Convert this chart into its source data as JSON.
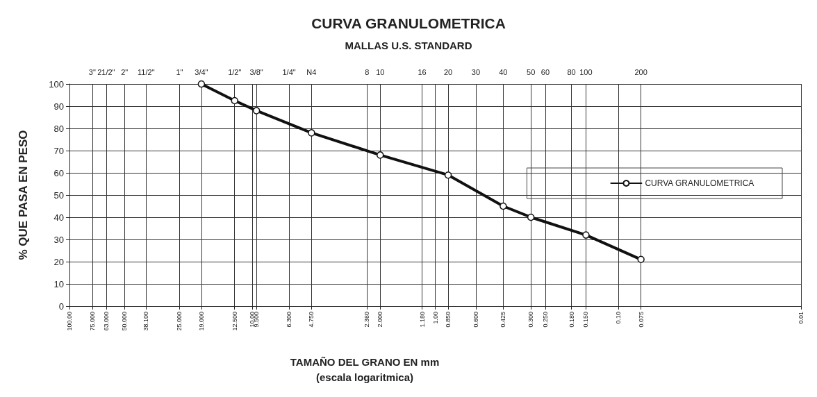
{
  "chart_data": {
    "type": "line",
    "title": "CURVA GRANULOMETRICA",
    "subtitle": "MALLAS U.S. STANDARD",
    "xlabel": "TAMAÑO DEL GRANO EN mm\n(escala logaritmica)",
    "ylabel": "% QUE PASA EN PESO",
    "log": "x",
    "grid": true,
    "legend": "right",
    "marker": "circle",
    "line_style": "solid",
    "xlim": [
      100,
      0.01
    ],
    "xticks": [
      {
        "value": 100,
        "label": "100.00"
      },
      {
        "value": 75,
        "label": "75.000"
      },
      {
        "value": 63,
        "label": "63.000"
      },
      {
        "value": 50,
        "label": "50.000"
      },
      {
        "value": 38.1,
        "label": "38.100"
      },
      {
        "value": 25,
        "label": "25.000"
      },
      {
        "value": 19,
        "label": "19.000"
      },
      {
        "value": 12.5,
        "label": "12.500"
      },
      {
        "value": 10,
        "label": "10.00"
      },
      {
        "value": 9.5,
        "label": "9.500"
      },
      {
        "value": 6.3,
        "label": "6.300"
      },
      {
        "value": 4.75,
        "label": "4.750"
      },
      {
        "value": 2.36,
        "label": "2.360"
      },
      {
        "value": 2,
        "label": "2.000"
      },
      {
        "value": 1.18,
        "label": "1.180"
      },
      {
        "value": 1,
        "label": "1.00"
      },
      {
        "value": 0.85,
        "label": "0.850"
      },
      {
        "value": 0.6,
        "label": "0.600"
      },
      {
        "value": 0.425,
        "label": "0.425"
      },
      {
        "value": 0.3,
        "label": "0.300"
      },
      {
        "value": 0.25,
        "label": "0.250"
      },
      {
        "value": 0.18,
        "label": "0.180"
      },
      {
        "value": 0.15,
        "label": "0.150"
      },
      {
        "value": 0.1,
        "label": "0.10"
      },
      {
        "value": 0.075,
        "label": "0.075"
      },
      {
        "value": 0.01,
        "label": "0.01"
      }
    ],
    "annotations": [
      "3\"",
      "21/2\"",
      "2\"",
      "11/2\"",
      "1\"",
      "3/4\"",
      "1/2\"",
      "3/8\"",
      "1/4\"",
      "N4",
      "8",
      "10",
      "16",
      "20",
      "30",
      "40",
      "50",
      "60",
      "80",
      "100",
      "200"
    ],
    "ylim": [
      0,
      100
    ],
    "yticks": [
      0,
      10,
      20,
      30,
      40,
      50,
      60,
      70,
      80,
      90,
      100
    ],
    "series": [
      {
        "name": "CURVA GRANULOMETRICA",
        "color": "#111111",
        "x": [
          19,
          12.5,
          9.5,
          4.75,
          2,
          0.85,
          0.425,
          0.3,
          0.15,
          0.075
        ],
        "values": [
          100,
          92.5,
          88,
          78,
          68,
          59,
          45,
          40,
          32,
          21
        ]
      }
    ]
  }
}
